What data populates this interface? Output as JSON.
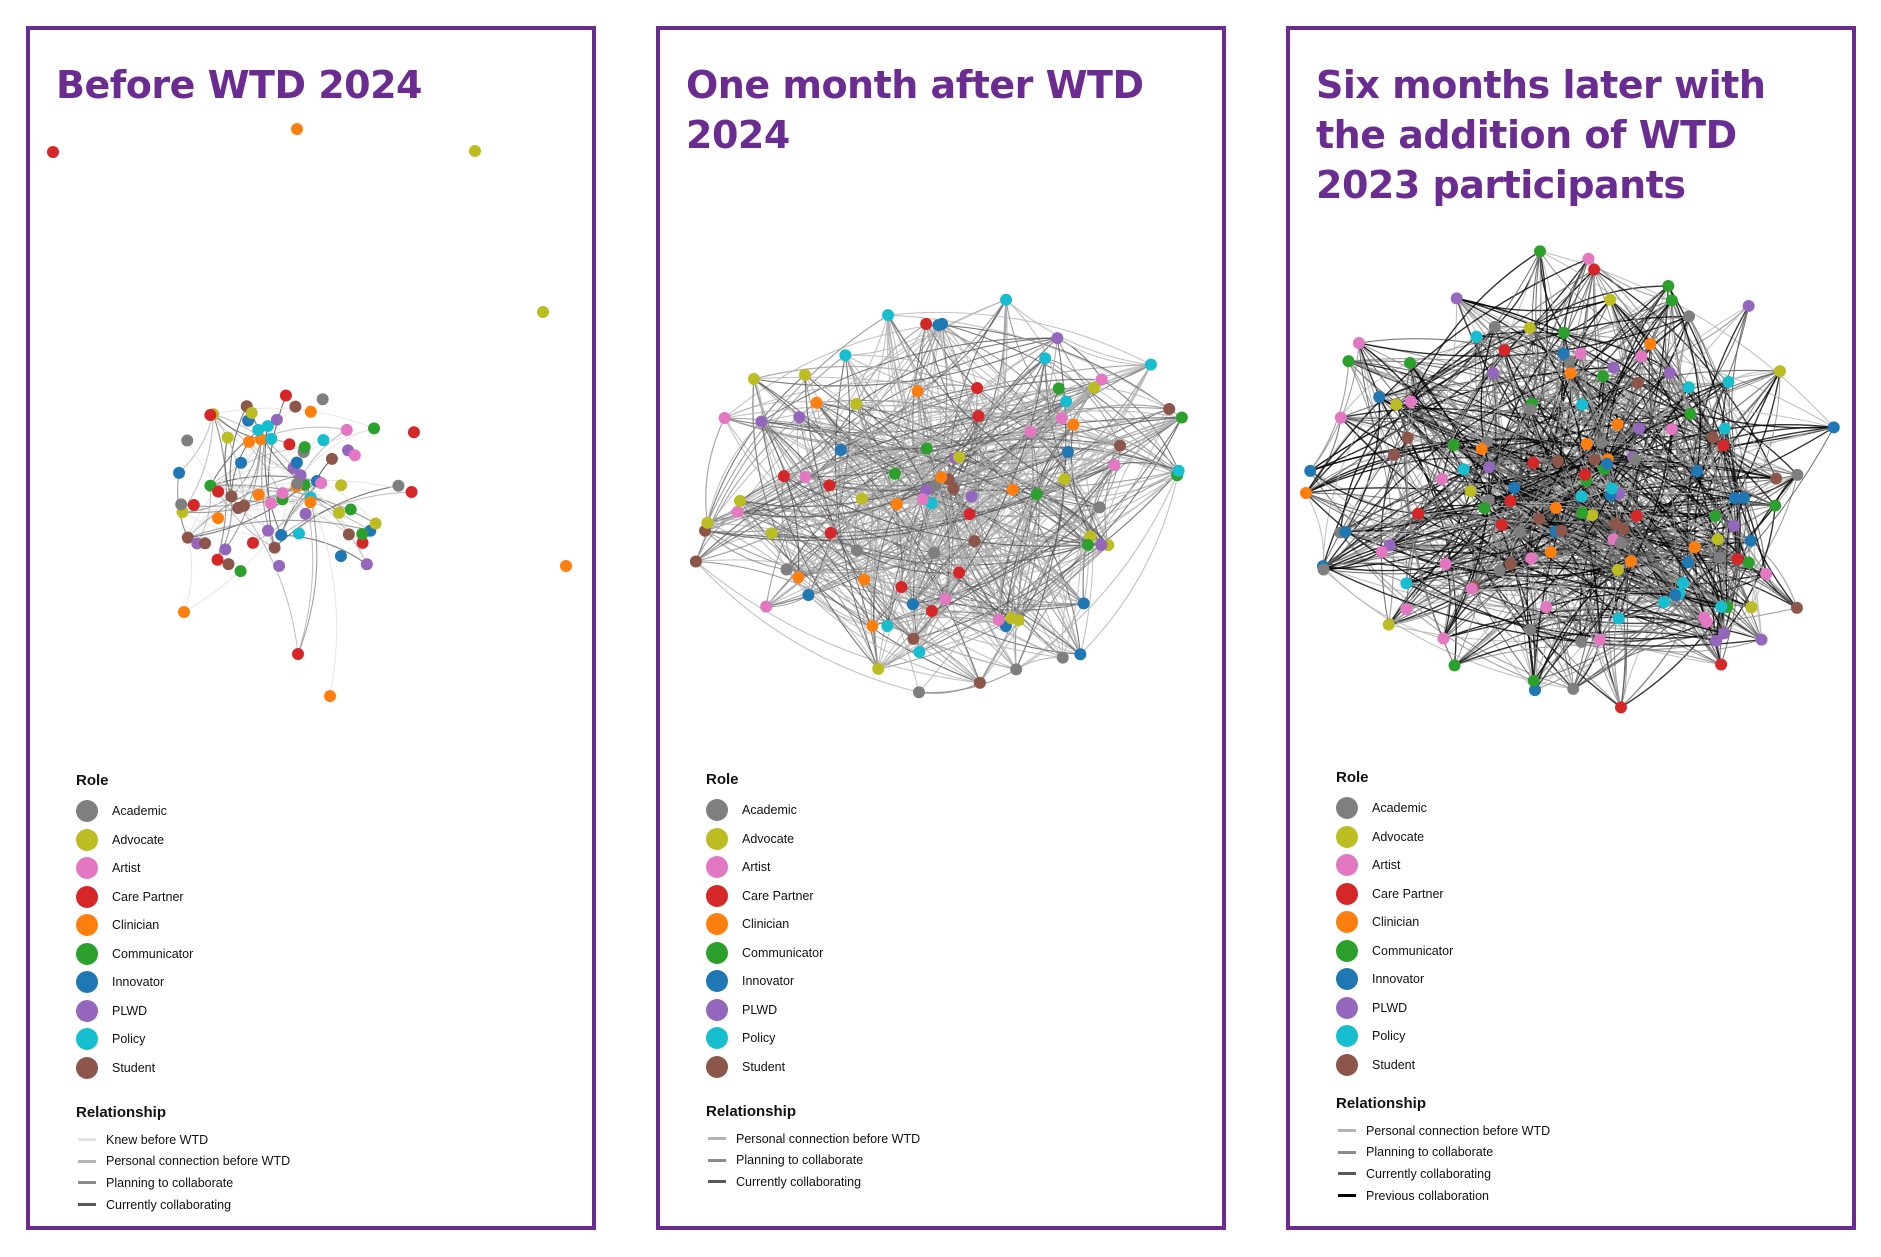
{
  "panels": [
    {
      "title": "Before WTD 2024",
      "relationships": [
        "Knew before WTD",
        "Personal connection before WTD",
        "Planning to collaborate",
        "Currently collaborating"
      ]
    },
    {
      "title": "One month after WTD 2024",
      "relationships": [
        "Personal connection before WTD",
        "Planning to collaborate",
        "Currently collaborating"
      ]
    },
    {
      "title": "Six months later with the addition of WTD 2023 participants",
      "relationships": [
        "Personal connection before WTD",
        "Planning to collaborate",
        "Currently collaborating",
        "Previous collaboration"
      ]
    }
  ],
  "legend": {
    "role_heading": "Role",
    "relationship_heading": "Relationship",
    "roles": [
      {
        "label": "Academic",
        "color": "#7f7f7f"
      },
      {
        "label": "Advocate",
        "color": "#bcbd22"
      },
      {
        "label": "Artist",
        "color": "#e377c2"
      },
      {
        "label": "Care Partner",
        "color": "#d62728"
      },
      {
        "label": "Clinician",
        "color": "#ff7f0e"
      },
      {
        "label": "Communicator",
        "color": "#2ca02c"
      },
      {
        "label": "Innovator",
        "color": "#1f77b4"
      },
      {
        "label": "PLWD",
        "color": "#9467bd"
      },
      {
        "label": "Policy",
        "color": "#17becf"
      },
      {
        "label": "Student",
        "color": "#8c564b"
      }
    ],
    "relationship_colors": {
      "Knew before WTD": "#e2e2e2",
      "Personal connection before WTD": "#b3b3b3",
      "Planning to collaborate": "#8a8a8a",
      "Currently collaborating": "#585858",
      "Previous collaboration": "#000000"
    }
  },
  "border_color": "#6b2c91"
}
